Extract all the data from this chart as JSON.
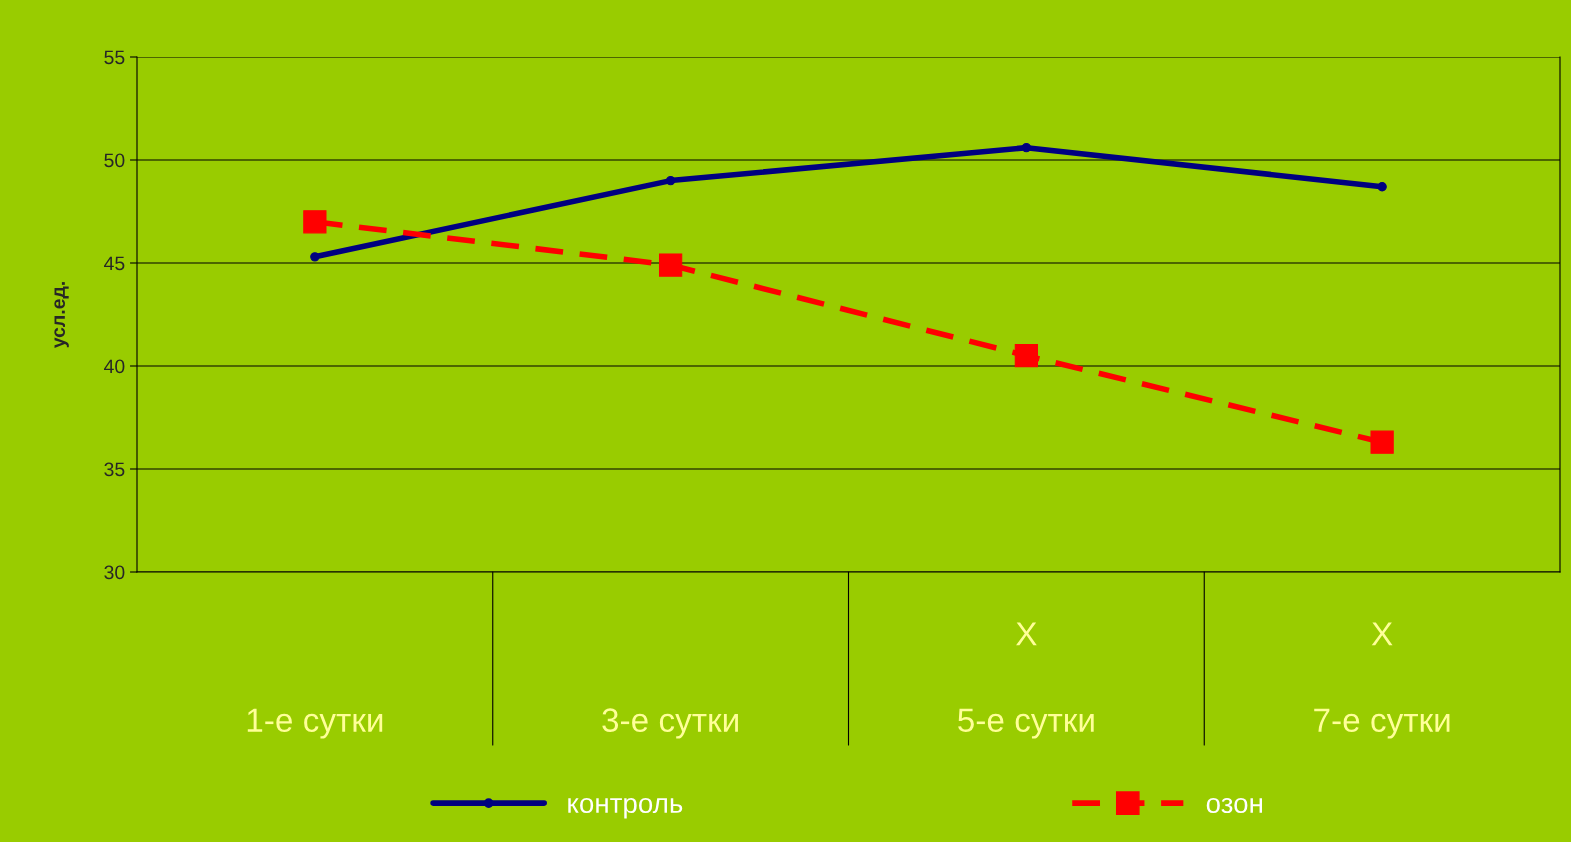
{
  "chart_data": {
    "type": "line",
    "ylabel": "усл.ед.",
    "categories": [
      "1-е сутки",
      "3-е сутки",
      "X\n\n5-е сутки",
      "X\n\n7-е сутки"
    ],
    "series": [
      {
        "name": "контроль",
        "color": "#000080",
        "values": [
          45.3,
          49.0,
          50.6,
          48.7
        ],
        "marker": "circle",
        "line_style": "solid"
      },
      {
        "name": "озон",
        "color": "#ff0000",
        "values": [
          47.0,
          44.9,
          40.5,
          36.3
        ],
        "marker": "square",
        "line_style": "dashed"
      }
    ],
    "ylim": [
      30,
      55
    ],
    "yticks": [
      30,
      35,
      40,
      45,
      50,
      55
    ],
    "grid": "y",
    "legend": "bottom"
  }
}
